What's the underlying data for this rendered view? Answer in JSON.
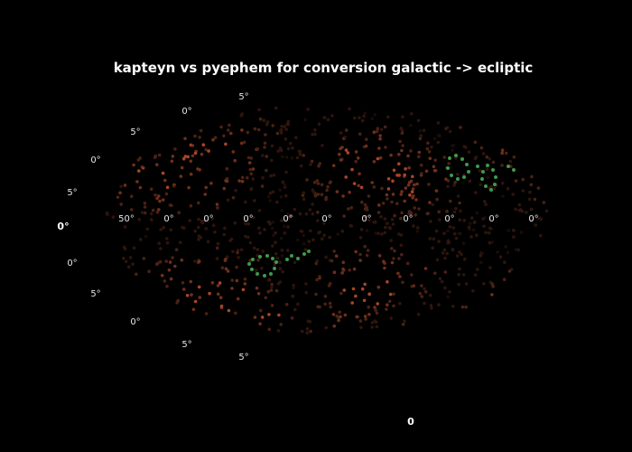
{
  "chart_data": {
    "type": "scatter",
    "projection": "aitoff",
    "title": "kapteyn vs pyephem for conversion galactic -> ecliptic",
    "xlabel": "",
    "ylabel": "",
    "lon_tick_labels": [
      "50°",
      "0°",
      "0°",
      "0°",
      "0°",
      "0°",
      "0°",
      "0°",
      "0°",
      "0°",
      "0°",
      "50°"
    ],
    "lon_tick_values": [
      -150,
      -120,
      -90,
      -60,
      -30,
      0,
      30,
      60,
      90,
      120,
      150,
      175
    ],
    "lat_tick_labels_left": [
      "0°",
      "5°",
      "0°",
      "5°",
      "0°",
      "5°",
      "0°",
      "5°",
      "0°",
      "5°"
    ],
    "lat_tick_values_left": [
      0,
      15,
      30,
      45,
      60,
      75,
      -15,
      -30,
      -45,
      -60
    ],
    "lat_tick_labels_mid": [
      "0°",
      "5°",
      "0°",
      "5°"
    ],
    "lat_tick_values_mid": [
      60,
      75,
      -60,
      -75
    ],
    "colorbar": {
      "labels": [
        "",
        "",
        "",
        "0"
      ],
      "colors": [
        "#0a0605",
        "#3a1a10",
        "#8a3a22",
        "#c85a32"
      ]
    },
    "highlight_color": "#3f9a4a",
    "point_colors": [
      "#1a0c08",
      "#2e150d",
      "#4a2214",
      "#6e2f1b",
      "#a94527"
    ],
    "point_count": 900
  }
}
